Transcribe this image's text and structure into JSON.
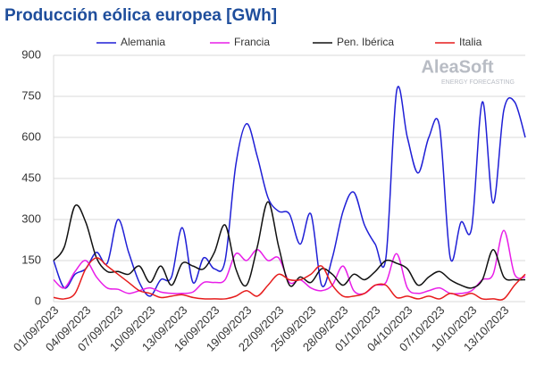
{
  "chart_data": {
    "type": "line",
    "title": "Producción eólica europea [GWh]",
    "watermark": [
      "AleaSoft",
      "ENERGY FORECASTING"
    ],
    "categories": [
      "01/09/2023",
      null,
      null,
      "04/09/2023",
      null,
      null,
      "07/09/2023",
      null,
      null,
      "10/09/2023",
      null,
      null,
      "13/09/2023",
      null,
      null,
      "16/09/2023",
      null,
      null,
      "19/09/2023",
      null,
      null,
      "22/09/2023",
      null,
      null,
      "25/09/2023",
      null,
      null,
      "28/09/2023",
      null,
      null,
      "01/10/2023",
      null,
      null,
      "04/10/2023",
      null,
      null,
      "07/10/2023",
      null,
      null,
      "10/10/2023",
      null,
      null,
      "13/10/2023",
      null,
      null
    ],
    "ylim": [
      0,
      900
    ],
    "yticks": [
      0,
      150,
      300,
      450,
      600,
      750,
      900
    ],
    "grid": true,
    "legend": "top",
    "series": [
      {
        "name": "Alemania",
        "color": "#1f1fd6",
        "values": [
          150,
          50,
          100,
          120,
          180,
          140,
          300,
          180,
          70,
          20,
          80,
          90,
          270,
          70,
          160,
          120,
          150,
          500,
          650,
          530,
          380,
          330,
          320,
          210,
          320,
          60,
          160,
          330,
          400,
          280,
          210,
          160,
          770,
          600,
          470,
          600,
          640,
          160,
          290,
          270,
          730,
          360,
          700,
          730,
          600
        ]
      },
      {
        "name": "Francia",
        "color": "#e81ee8",
        "values": [
          80,
          50,
          110,
          150,
          90,
          50,
          45,
          30,
          40,
          50,
          35,
          30,
          30,
          35,
          70,
          70,
          80,
          175,
          150,
          190,
          150,
          160,
          70,
          80,
          50,
          40,
          60,
          130,
          40,
          30,
          60,
          70,
          175,
          50,
          30,
          40,
          50,
          30,
          30,
          40,
          80,
          100,
          260,
          100,
          90
        ]
      },
      {
        "name": "Pen. Ibérica",
        "color": "#111111",
        "values": [
          150,
          200,
          350,
          290,
          160,
          110,
          110,
          100,
          130,
          70,
          130,
          60,
          140,
          130,
          120,
          180,
          280,
          120,
          60,
          200,
          365,
          200,
          60,
          90,
          70,
          120,
          100,
          60,
          100,
          80,
          110,
          150,
          140,
          120,
          60,
          90,
          110,
          80,
          60,
          50,
          80,
          190,
          90,
          80,
          80
        ]
      },
      {
        "name": "Italia",
        "color": "#e61c1c",
        "values": [
          15,
          10,
          30,
          120,
          160,
          130,
          100,
          70,
          40,
          30,
          15,
          20,
          25,
          15,
          10,
          10,
          10,
          20,
          40,
          20,
          60,
          100,
          80,
          80,
          100,
          130,
          60,
          20,
          20,
          30,
          60,
          60,
          15,
          20,
          10,
          20,
          10,
          30,
          20,
          30,
          10,
          10,
          10,
          60,
          100
        ]
      }
    ]
  }
}
